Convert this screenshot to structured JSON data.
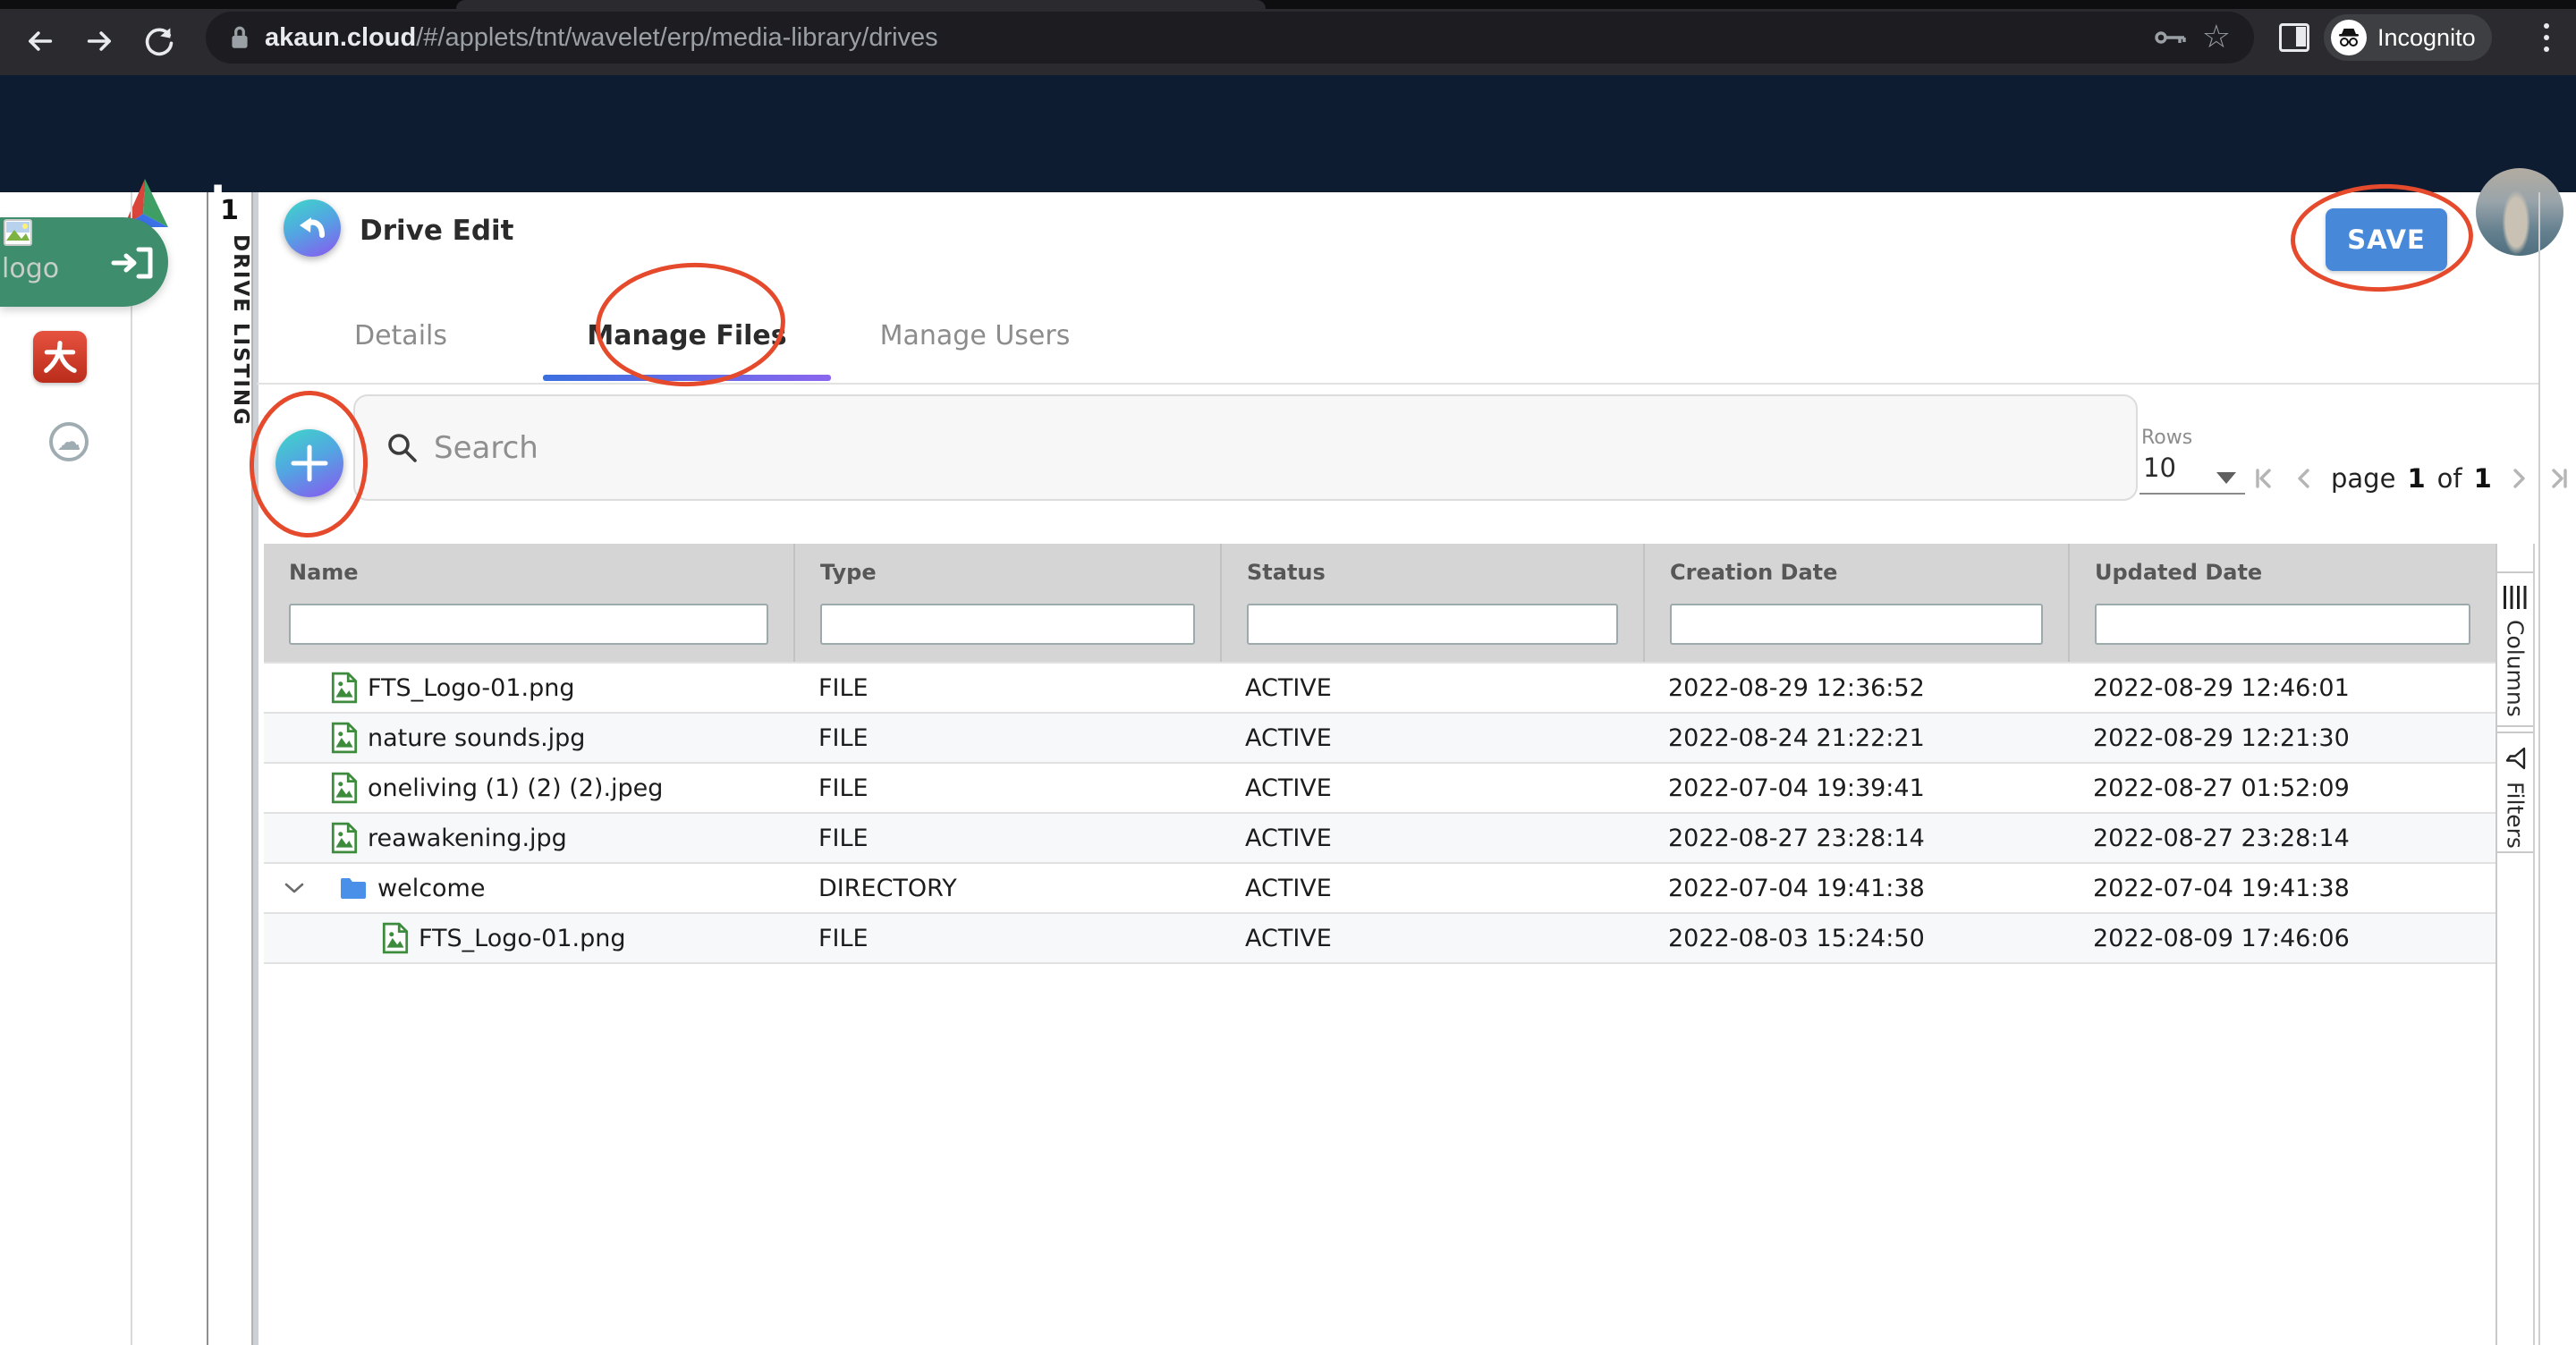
{
  "browser": {
    "host": "akaun.cloud",
    "path": "/#/applets/tnt/wavelet/erp/media-library/drives",
    "incognito_label": "Incognito"
  },
  "brand": {
    "name": "akaun"
  },
  "left_sidebar": {
    "logo_alt": "logo"
  },
  "drawer": {
    "badge": "1",
    "label": "DRIVE LISTING"
  },
  "page": {
    "title": "Drive Edit",
    "save_label": "SAVE"
  },
  "tabs": {
    "items": [
      {
        "label": "Details",
        "active": false
      },
      {
        "label": "Manage Files",
        "active": true
      },
      {
        "label": "Manage Users",
        "active": false
      }
    ]
  },
  "toolbar": {
    "search_placeholder": "Search",
    "rows_label": "Rows",
    "rows_value": "10",
    "page_word": "page",
    "page_current": "1",
    "of_word": "of",
    "page_total": "1"
  },
  "table": {
    "columns": [
      "Name",
      "Type",
      "Status",
      "Creation Date",
      "Updated Date"
    ],
    "filter_values": [
      "",
      "",
      "",
      "",
      ""
    ],
    "rows": [
      {
        "name": "FTS_Logo-01.png",
        "type": "FILE",
        "status": "ACTIVE",
        "created": "2022-08-29 12:36:52",
        "updated": "2022-08-29 12:46:01",
        "icon": "image-file",
        "indent": 0,
        "expandable": false
      },
      {
        "name": "nature sounds.jpg",
        "type": "FILE",
        "status": "ACTIVE",
        "created": "2022-08-24 21:22:21",
        "updated": "2022-08-29 12:21:30",
        "icon": "image-file",
        "indent": 0,
        "expandable": false
      },
      {
        "name": "oneliving (1) (2) (2).jpeg",
        "type": "FILE",
        "status": "ACTIVE",
        "created": "2022-07-04 19:39:41",
        "updated": "2022-08-27 01:52:09",
        "icon": "image-file",
        "indent": 0,
        "expandable": false
      },
      {
        "name": "reawakening.jpg",
        "type": "FILE",
        "status": "ACTIVE",
        "created": "2022-08-27 23:28:14",
        "updated": "2022-08-27 23:28:14",
        "icon": "image-file",
        "indent": 0,
        "expandable": false
      },
      {
        "name": "welcome",
        "type": "DIRECTORY",
        "status": "ACTIVE",
        "created": "2022-07-04 19:41:38",
        "updated": "2022-07-04 19:41:38",
        "icon": "folder",
        "indent": 0,
        "expandable": true
      },
      {
        "name": "FTS_Logo-01.png",
        "type": "FILE",
        "status": "ACTIVE",
        "created": "2022-08-03 15:24:50",
        "updated": "2022-08-09 17:46:06",
        "icon": "image-file",
        "indent": 1,
        "expandable": false
      }
    ]
  },
  "side_panel": {
    "tabs": [
      {
        "label": "Columns",
        "icon": "columns-icon"
      },
      {
        "label": "Filters",
        "icon": "filter-icon"
      }
    ]
  },
  "icons": {
    "cloud_glyph": "☁"
  },
  "colors": {
    "accent_blue": "#4788d8",
    "annotation_red": "#e54a2c",
    "header_navy": "#0d1c31",
    "gradient_teal": "#3ed8c8",
    "gradient_purple": "#8b55f0",
    "brand_green": "#3e8e6d",
    "tab_underline_start": "#3a6fdf",
    "tab_underline_end": "#8a66ee"
  }
}
